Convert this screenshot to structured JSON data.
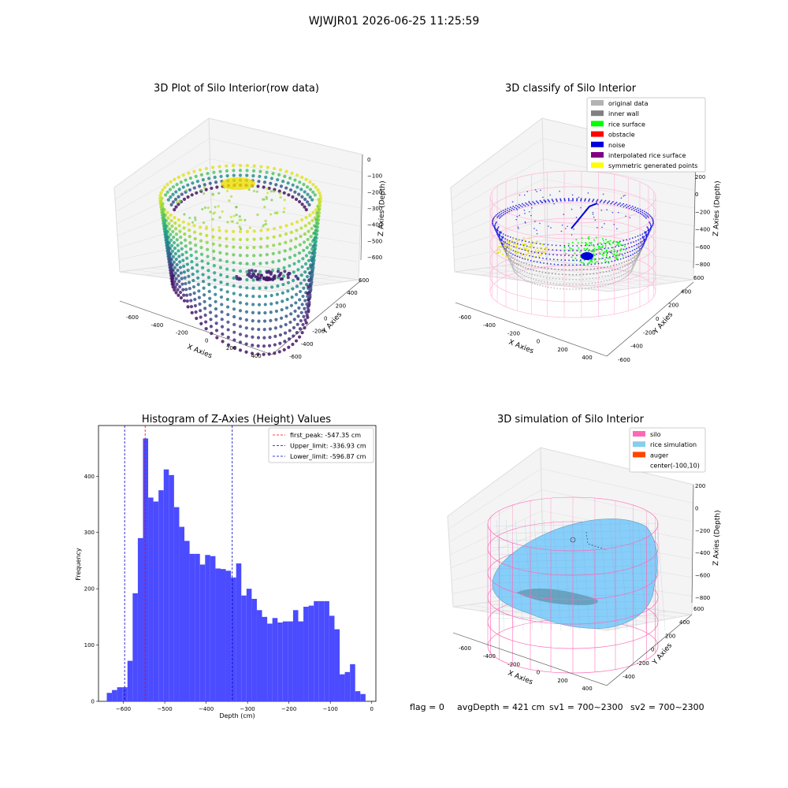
{
  "suptitle": "WJWJR01 2026-06-25 11:25:59",
  "footer": {
    "flag": "flag = 0",
    "avg": "avgDepth = 421 cm",
    "sv1": "sv1 = 700~2300",
    "sv2": "sv2 = 700~2300"
  },
  "colors": {
    "hist_bar": "#4b4bff",
    "first_peak": "#ff0000",
    "limits": "#0000cc",
    "silo_wire": "#ff69b4",
    "rice": "#87cefa"
  },
  "chart_data": [
    {
      "type": "scatter",
      "title": "3D Plot of Silo Interior(row data)",
      "xlabel": "X Axies",
      "ylabel": "Y Axies",
      "zlabel": "Z Axies (Depth)",
      "x_ticks": [
        "-600",
        "-400",
        "-200",
        "0",
        "200",
        "400"
      ],
      "y_ticks": [
        "-600",
        "-400",
        "-200",
        "0",
        "200",
        "400",
        "600"
      ],
      "z_ticks": [
        "0",
        "−100",
        "−200",
        "−300",
        "−400",
        "−500",
        "−600"
      ],
      "colormap": "viridis"
    },
    {
      "type": "scatter",
      "title": "3D classify of Silo Interior",
      "xlabel": "X Axies",
      "ylabel": "Y Axies",
      "zlabel": "Z Axies (Depth)",
      "x_ticks": [
        "-600",
        "-400",
        "-200",
        "0",
        "200",
        "400"
      ],
      "y_ticks": [
        "-600",
        "-400",
        "-200",
        "0",
        "200",
        "400",
        "600"
      ],
      "z_ticks": [
        "200",
        "0",
        "−200",
        "−400",
        "−600",
        "−800"
      ],
      "legend": [
        {
          "label": "original data",
          "color": "#b3b3b3"
        },
        {
          "label": "inner wall",
          "color": "#808080"
        },
        {
          "label": "rice surface",
          "color": "#00ff00"
        },
        {
          "label": "obstacle",
          "color": "#ff0000"
        },
        {
          "label": "noise",
          "color": "#0000dd"
        },
        {
          "label": "interpolated rice surface",
          "color": "#800080"
        },
        {
          "label": "symmetric generated points",
          "color": "#ffff00"
        }
      ],
      "legend_placement": "upper right"
    },
    {
      "type": "bar",
      "title": "Histogram of Z-Axies (Height) Values",
      "xlabel": "Depth (cm)",
      "ylabel": "Frequency",
      "xlim": [
        -660,
        10
      ],
      "ylim": [
        0,
        490
      ],
      "x_ticks": [
        -600,
        -500,
        -400,
        -300,
        -200,
        -100,
        0
      ],
      "y_ticks": [
        0,
        100,
        200,
        300,
        400
      ],
      "bin_start": -640,
      "bin_width": 12.5,
      "values": [
        15,
        20,
        25,
        25,
        72,
        192,
        290,
        467,
        362,
        355,
        375,
        412,
        402,
        345,
        310,
        285,
        262,
        262,
        243,
        260,
        258,
        236,
        235,
        232,
        220,
        245,
        188,
        200,
        182,
        162,
        150,
        138,
        148,
        140,
        142,
        142,
        162,
        142,
        168,
        170,
        178,
        178,
        178,
        152,
        128,
        48,
        52,
        66,
        18,
        13
      ],
      "vlines": [
        {
          "label": "first_peak: -547.35 cm",
          "x": -547.35,
          "color": "#ff0000"
        },
        {
          "label": "Upper_limit: -336.93 cm",
          "x": -336.93,
          "color": "#0000cc"
        },
        {
          "label": "Lower_limit: -596.87 cm",
          "x": -596.87,
          "color": "#0000cc"
        }
      ],
      "legend_placement": "upper right"
    },
    {
      "type": "surface",
      "title": "3D simulation of Silo Interior",
      "xlabel": "X Axies",
      "ylabel": "Y Axies",
      "zlabel": "Z Axies (Depth)",
      "x_ticks": [
        "-600",
        "-400",
        "-200",
        "0",
        "200",
        "400"
      ],
      "y_ticks": [
        "-400",
        "-200",
        "0",
        "200",
        "400",
        "600"
      ],
      "z_ticks": [
        "200",
        "0",
        "−200",
        "−400",
        "−600",
        "−800"
      ],
      "legend": [
        {
          "label": "silo",
          "color": "#ff69b4"
        },
        {
          "label": "rice simulation",
          "color": "#87ceeb"
        },
        {
          "label": "auger",
          "color": "#ff4500"
        },
        {
          "label": "center(-100,10)",
          "color": ""
        }
      ],
      "legend_placement": "upper right"
    }
  ]
}
